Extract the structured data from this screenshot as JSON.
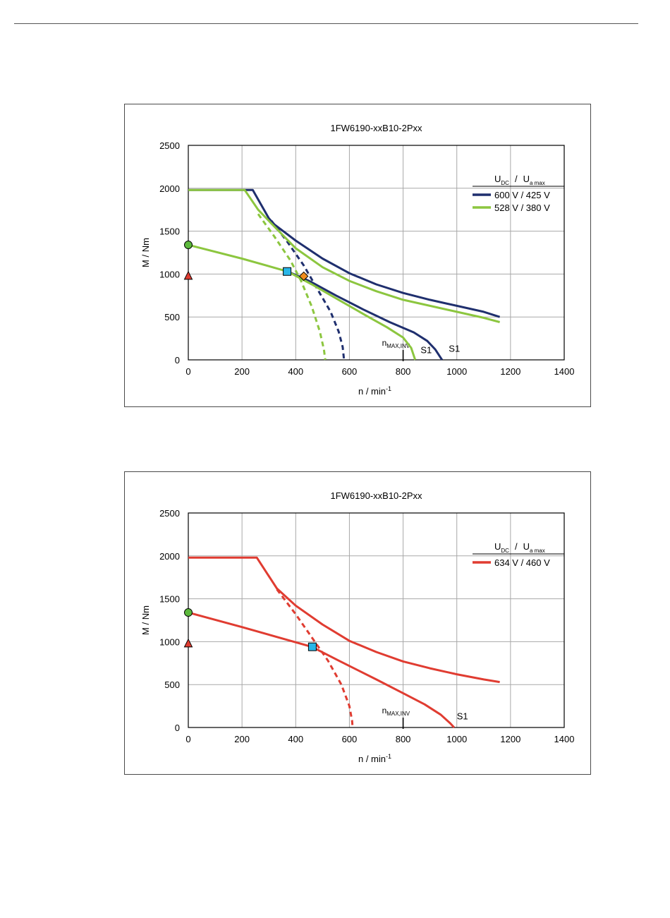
{
  "chart_data": [
    {
      "type": "line",
      "title": "1FW6190-xxB10-2Pxx",
      "xlabel_base": "n / min",
      "xlabel_exp": "-1",
      "ylabel": "M / Nm",
      "xlim": [
        0,
        1400
      ],
      "ylim": [
        0,
        2500
      ],
      "x_ticks": [
        "0",
        "200",
        "400",
        "600",
        "800",
        "1000",
        "1200",
        "1400"
      ],
      "y_ticks": [
        "0",
        "500",
        "1000",
        "1500",
        "2000",
        "2500"
      ],
      "grid": true,
      "legend_position": "top-right",
      "legend_header": {
        "u": "U",
        "dc": "DC",
        "sep": "/",
        "u2": "U",
        "amax": "a max"
      },
      "series": [
        {
          "name": "600 V / 425 V",
          "color": "#1f2f6e",
          "curves": [
            {
              "style": "solid",
              "points": [
                [
                  0,
                  1980
                ],
                [
                  240,
                  1980
                ],
                [
                  300,
                  1650
                ],
                [
                  320,
                  1580
                ],
                [
                  400,
                  1390
                ],
                [
                  500,
                  1180
                ],
                [
                  600,
                  1010
                ],
                [
                  700,
                  880
                ],
                [
                  800,
                  780
                ],
                [
                  900,
                  700
                ],
                [
                  1000,
                  630
                ],
                [
                  1100,
                  560
                ],
                [
                  1160,
                  500
                ]
              ]
            },
            {
              "style": "solid",
              "points": [
                [
                  370,
                  1030
                ],
                [
                  450,
                  920
                ],
                [
                  550,
                  750
                ],
                [
                  650,
                  590
                ],
                [
                  750,
                  440
                ],
                [
                  840,
                  320
                ],
                [
                  890,
                  220
                ],
                [
                  920,
                  120
                ],
                [
                  945,
                  0
                ]
              ]
            },
            {
              "style": "dashed",
              "points": [
                [
                  310,
                  1620
                ],
                [
                  370,
                  1370
                ],
                [
                  430,
                  1100
                ],
                [
                  480,
                  830
                ],
                [
                  530,
                  560
                ],
                [
                  560,
                  330
                ],
                [
                  575,
                  150
                ],
                [
                  580,
                  0
                ]
              ]
            }
          ]
        },
        {
          "name": "528 V / 380 V",
          "color": "#8cc63f",
          "curves": [
            {
              "style": "solid",
              "points": [
                [
                  0,
                  1980
                ],
                [
                  210,
                  1980
                ],
                [
                  260,
                  1750
                ],
                [
                  300,
                  1620
                ],
                [
                  400,
                  1300
                ],
                [
                  500,
                  1080
                ],
                [
                  600,
                  920
                ],
                [
                  700,
                  800
                ],
                [
                  800,
                  700
                ],
                [
                  900,
                  630
                ],
                [
                  1000,
                  560
                ],
                [
                  1100,
                  490
                ],
                [
                  1160,
                  440
                ]
              ]
            },
            {
              "style": "solid",
              "points": [
                [
                  0,
                  1340
                ],
                [
                  200,
                  1180
                ],
                [
                  370,
                  1030
                ],
                [
                  460,
                  880
                ],
                [
                  560,
                  700
                ],
                [
                  660,
                  520
                ],
                [
                  740,
                  380
                ],
                [
                  800,
                  260
                ],
                [
                  830,
                  140
                ],
                [
                  845,
                  0
                ]
              ]
            },
            {
              "style": "dashed",
              "points": [
                [
                  260,
                  1700
                ],
                [
                  320,
                  1440
                ],
                [
                  380,
                  1160
                ],
                [
                  420,
                  920
                ],
                [
                  460,
                  620
                ],
                [
                  490,
                  330
                ],
                [
                  505,
                  120
                ],
                [
                  510,
                  0
                ]
              ]
            }
          ]
        }
      ],
      "markers": [
        {
          "shape": "circle",
          "x": 0,
          "y": 1340,
          "color": "#5cb83c"
        },
        {
          "shape": "triangle",
          "x": 0,
          "y": 980,
          "color": "#e03c31"
        },
        {
          "shape": "square",
          "x": 368,
          "y": 1030,
          "color": "#29b6e8"
        },
        {
          "shape": "diamond",
          "x": 430,
          "y": 975,
          "color": "#f08c1e"
        }
      ],
      "annotations": {
        "nmax_base": "n",
        "nmax_sub": "MAX,INV",
        "nmax_x": 800,
        "s1_labels": [
          {
            "text": "S1",
            "x": 865,
            "y": 80
          },
          {
            "text": "S1",
            "x": 970,
            "y": 95
          }
        ]
      }
    },
    {
      "type": "line",
      "title": "1FW6190-xxB10-2Pxx",
      "xlabel_base": "n / min",
      "xlabel_exp": "-1",
      "ylabel": "M / Nm",
      "xlim": [
        0,
        1400
      ],
      "ylim": [
        0,
        2500
      ],
      "x_ticks": [
        "0",
        "200",
        "400",
        "600",
        "800",
        "1000",
        "1200",
        "1400"
      ],
      "y_ticks": [
        "0",
        "500",
        "1000",
        "1500",
        "2000",
        "2500"
      ],
      "grid": true,
      "legend_position": "top-right",
      "legend_header": {
        "u": "U",
        "dc": "DC",
        "sep": "/",
        "u2": "U",
        "amax": "a max"
      },
      "series": [
        {
          "name": "634 V / 460 V",
          "color": "#e03c31",
          "curves": [
            {
              "style": "solid",
              "points": [
                [
                  0,
                  1980
                ],
                [
                  255,
                  1980
                ],
                [
                  330,
                  1620
                ],
                [
                  400,
                  1420
                ],
                [
                  500,
                  1200
                ],
                [
                  600,
                  1010
                ],
                [
                  700,
                  880
                ],
                [
                  800,
                  770
                ],
                [
                  900,
                  690
                ],
                [
                  1000,
                  620
                ],
                [
                  1100,
                  560
                ],
                [
                  1160,
                  530
                ]
              ]
            },
            {
              "style": "solid",
              "points": [
                [
                  0,
                  1340
                ],
                [
                  200,
                  1170
                ],
                [
                  460,
                  940
                ],
                [
                  560,
                  780
                ],
                [
                  700,
                  560
                ],
                [
                  800,
                  400
                ],
                [
                  880,
                  270
                ],
                [
                  940,
                  150
                ],
                [
                  975,
                  50
                ],
                [
                  990,
                  0
                ]
              ]
            },
            {
              "style": "dashed",
              "points": [
                [
                  330,
                  1610
                ],
                [
                  400,
                  1320
                ],
                [
                  460,
                  1050
                ],
                [
                  520,
                  780
                ],
                [
                  570,
                  500
                ],
                [
                  600,
                  250
                ],
                [
                  610,
                  80
                ],
                [
                  612,
                  0
                ]
              ]
            }
          ]
        }
      ],
      "markers": [
        {
          "shape": "circle",
          "x": 0,
          "y": 1340,
          "color": "#5cb83c"
        },
        {
          "shape": "triangle",
          "x": 0,
          "y": 980,
          "color": "#e03c31"
        },
        {
          "shape": "square",
          "x": 462,
          "y": 940,
          "color": "#29b6e8"
        }
      ],
      "annotations": {
        "nmax_base": "n",
        "nmax_sub": "MAX,INV",
        "nmax_x": 800,
        "s1_labels": [
          {
            "text": "S1",
            "x": 1000,
            "y": 95
          }
        ]
      }
    }
  ]
}
